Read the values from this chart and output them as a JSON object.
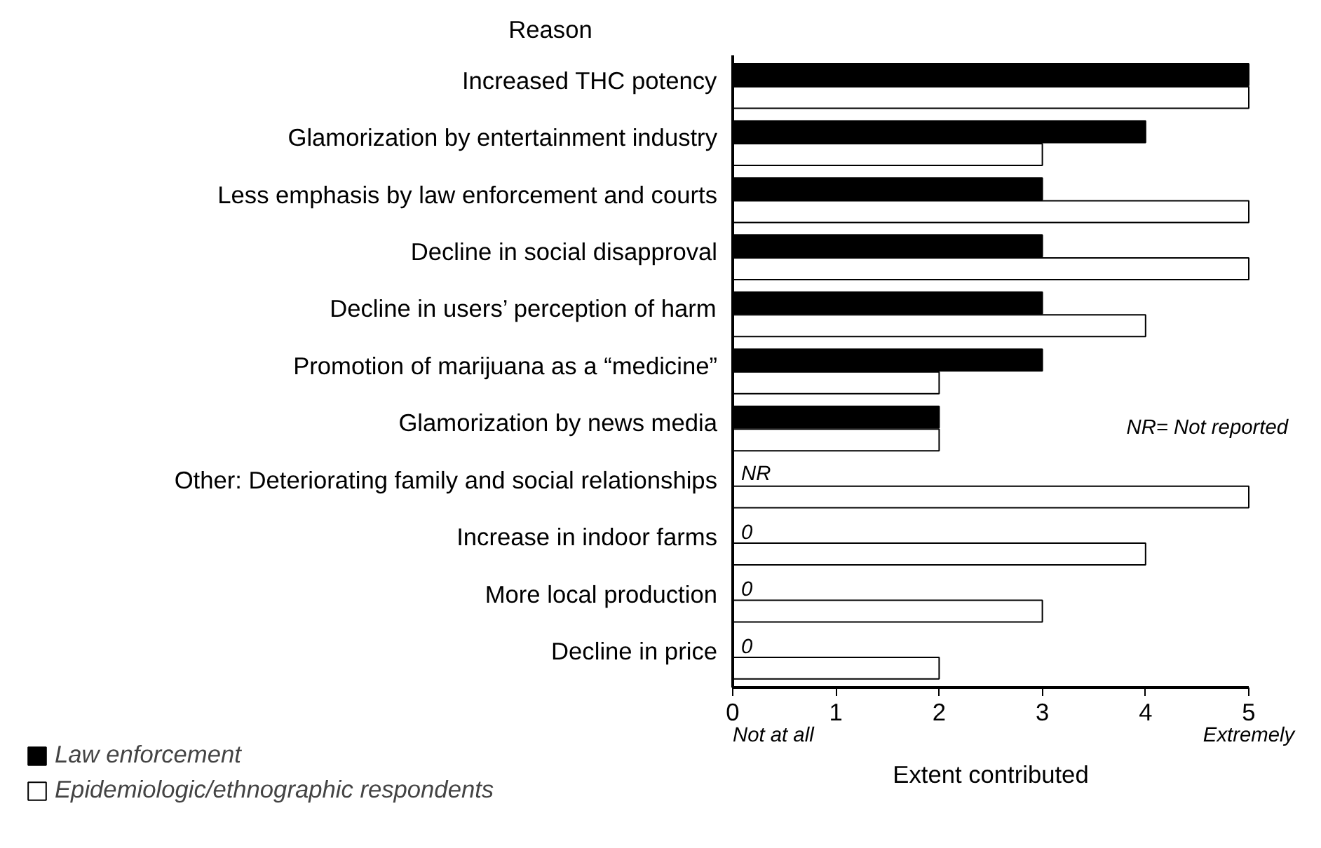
{
  "chart_data": {
    "type": "bar",
    "orientation": "horizontal",
    "ylabel": "Reason",
    "xlabel": "Extent contributed",
    "categories": [
      "Increased THC potency",
      "Glamorization by entertainment industry",
      "Less emphasis by law enforcement and courts",
      "Decline in social disapproval",
      "Decline in users’ perception of harm",
      "Promotion of marijuana as a “medicine”",
      "Glamorization by news media",
      "Other: Deteriorating family and social relationships",
      "Increase in indoor farms",
      "More local production",
      "Decline in price"
    ],
    "series": [
      {
        "name": "Law enforcement",
        "color": "#000000",
        "values": [
          5,
          4,
          3,
          3,
          3,
          3,
          2,
          null,
          0,
          0,
          0
        ],
        "value_labels": [
          null,
          null,
          null,
          null,
          null,
          null,
          null,
          "NR",
          "0",
          "0",
          "0"
        ]
      },
      {
        "name": "Epidemiologic/ethnographic respondents",
        "color": "#ffffff",
        "values": [
          5,
          3,
          5,
          5,
          4,
          2,
          2,
          5,
          4,
          3,
          2
        ]
      }
    ],
    "xlim": [
      0,
      5
    ],
    "xticks": [
      0,
      1,
      2,
      3,
      4,
      5
    ],
    "annotations": [
      "Not at all",
      "Extremely",
      "NR= Not reported"
    ],
    "grid": false,
    "legend": "bottom left"
  }
}
